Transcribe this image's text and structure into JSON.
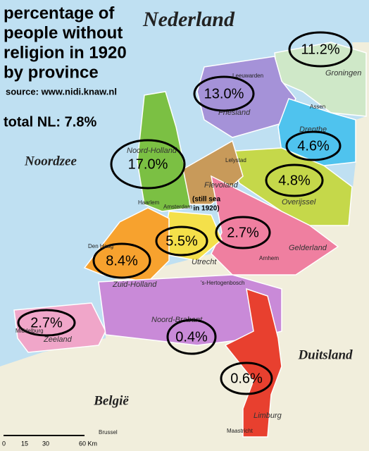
{
  "title": [
    "percentage of",
    "people without",
    "religion in 1920",
    "by province"
  ],
  "source": "source: www.nidi.knaw.nl",
  "total": "total NL: 7.8%",
  "map": {
    "country": "Nederland",
    "sea": "Noordzee",
    "neighbors": [
      "België",
      "Duitsland"
    ]
  },
  "provinces": [
    {
      "name": "Groningen",
      "value": "11.2%"
    },
    {
      "name": "Friesland",
      "value": "13.0%"
    },
    {
      "name": "Drenthe",
      "value": "4.6%"
    },
    {
      "name": "Overijssel",
      "value": "4.8%"
    },
    {
      "name": "Noord-Holland",
      "value": "17.0%"
    },
    {
      "name": "Utrecht",
      "value": "5.5%"
    },
    {
      "name": "Gelderland",
      "value": "2.7%"
    },
    {
      "name": "Zuid-Holland",
      "value": "8.4%"
    },
    {
      "name": "Zeeland",
      "value": "2.7%"
    },
    {
      "name": "Noord-Brabant",
      "value": "0.4%"
    },
    {
      "name": "Limburg",
      "value": "0.6%"
    }
  ],
  "flevoland": {
    "name": "Flevoland",
    "note": [
      "(still sea",
      "in 1920)"
    ]
  },
  "places": [
    "Leeuwarden",
    "Assen",
    "Haarlem",
    "Amsterdam",
    "Den Haag",
    "Arnhem",
    "'s-Hertogenbosch",
    "Middelburg",
    "Maastricht",
    "Brussel",
    "Lelystad"
  ],
  "scale": [
    "0",
    "15",
    "30",
    "60 Km"
  ]
}
